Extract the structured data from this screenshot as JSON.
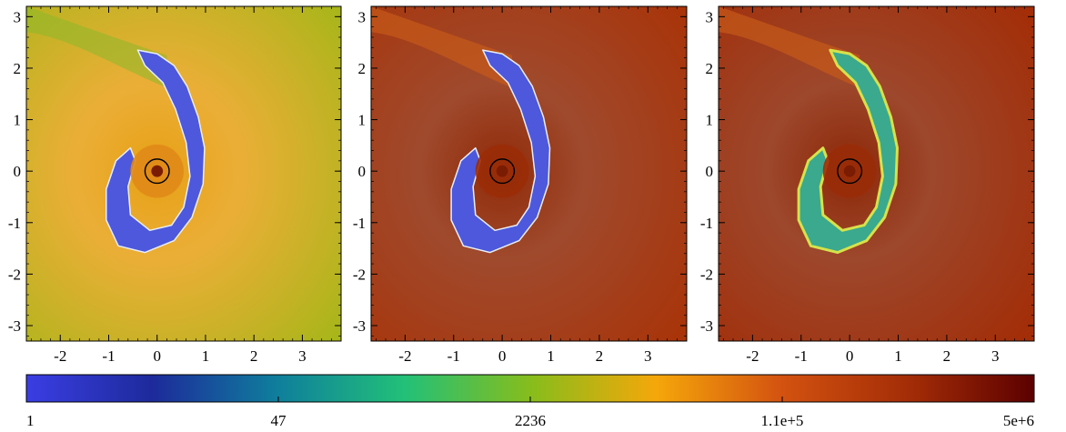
{
  "chart_data": {
    "type": "heatmap",
    "panels": [
      {
        "name": "",
        "background": "#a8b61a",
        "background_center": "#e7a014",
        "stream_fill": "#4d58dc",
        "xlim": [
          -2.7,
          3.8
        ],
        "ylim": [
          -3.3,
          3.2
        ],
        "xticks": [
          -2,
          -1,
          0,
          1,
          2,
          3
        ],
        "yticks": [
          3,
          2,
          1,
          0,
          -1,
          -2,
          -3
        ],
        "circle": {
          "center": [
            0,
            0
          ],
          "radius": 0.25
        }
      },
      {
        "name": "",
        "background": "#a93409",
        "background_center": "#8f2a08",
        "stream_fill": "#4d58dc",
        "xlim": [
          -2.7,
          3.8
        ],
        "ylim": [
          -3.3,
          3.2
        ],
        "xticks": [
          -2,
          -1,
          0,
          1,
          2,
          3
        ],
        "yticks": [
          3,
          2,
          1,
          0,
          -1,
          -2,
          -3
        ],
        "circle": {
          "center": [
            0,
            0
          ],
          "radius": 0.25
        }
      },
      {
        "name": "",
        "background": "#a32d07",
        "background_center": "#8c2707",
        "stream_fill": "#3aa98e",
        "xlim": [
          -2.7,
          3.8
        ],
        "ylim": [
          -3.3,
          3.2
        ],
        "xticks": [
          -2,
          -1,
          0,
          1,
          2,
          3
        ],
        "yticks": [
          3,
          2,
          1,
          0,
          -1,
          -2,
          -3
        ],
        "circle": {
          "center": [
            0,
            0
          ],
          "radius": 0.25
        }
      }
    ],
    "colorbar": {
      "scale": "log",
      "range": [
        1,
        5000000
      ],
      "tick_labels": [
        "1",
        "47",
        "2236",
        "1.1e+5",
        "5e+6"
      ],
      "colors": [
        "#3a3ee3",
        "#1d2a9b",
        "#0f7f9c",
        "#22c078",
        "#86bd1c",
        "#f5a70a",
        "#d35210",
        "#a42d07",
        "#5c0000"
      ]
    }
  }
}
